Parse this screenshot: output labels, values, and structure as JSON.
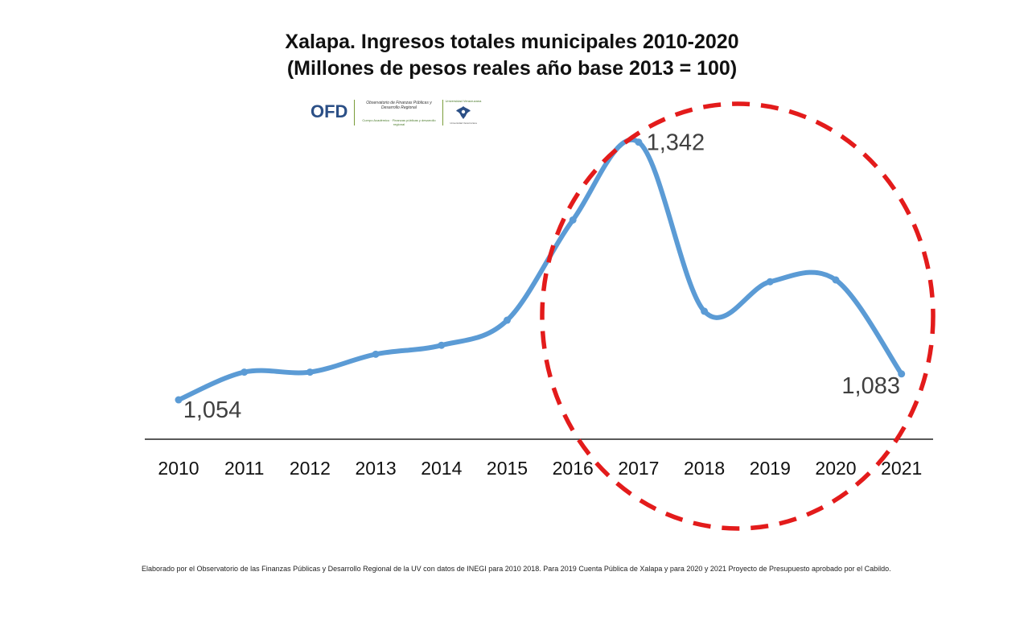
{
  "title_line1": "Xalapa. Ingresos totales municipales 2010-2020",
  "title_line2": "(Millones de pesos reales año base 2013 = 100)",
  "logo": {
    "acronym": "OFD",
    "org_name": "Observatorio de Finanzas Públicas y Desarrollo Regional",
    "org_subtitle": "Cuerpo Académico · Finanzas públicas y desarrollo regional",
    "university_label": "Universidad Veracruzana",
    "university_caption": "Universidad Veracruzana"
  },
  "footnote": "Elaborado por el Observatorio de las Finanzas Públicas y Desarrollo Regional de la UV con datos de INEGI para 2010 2018. Para 2019 Cuenta Pública de Xalapa y para 2020 y 2021 Proyecto de Presupuesto aprobado por el Cabildo.",
  "colors": {
    "line": "#5b9bd5",
    "highlight_circle": "#e31b1b",
    "axis": "#222222",
    "text": "#111111",
    "label_text": "#404040"
  },
  "chart_data": {
    "type": "line",
    "title": "Xalapa. Ingresos totales municipales 2010-2020",
    "subtitle": "(Millones de pesos reales año base 2013 = 100)",
    "xlabel": "",
    "ylabel": "",
    "categories": [
      "2010",
      "2011",
      "2012",
      "2013",
      "2014",
      "2015",
      "2016",
      "2017",
      "2018",
      "2019",
      "2020",
      "2021"
    ],
    "series": [
      {
        "values": [
          1054,
          1085,
          1085,
          1105,
          1115,
          1143,
          1255,
          1342,
          1153,
          1186,
          1188,
          1083
        ],
        "smooth": true
      }
    ],
    "data_labels": [
      {
        "index": 0,
        "text": "1,054"
      },
      {
        "index": 7,
        "text": "1,342"
      },
      {
        "index": 11,
        "text": "1,083"
      }
    ],
    "ylim": [
      1010,
      1375
    ],
    "grid": false,
    "legend": "none",
    "annotation": "dashed red circle highlighting 2017-2021"
  }
}
